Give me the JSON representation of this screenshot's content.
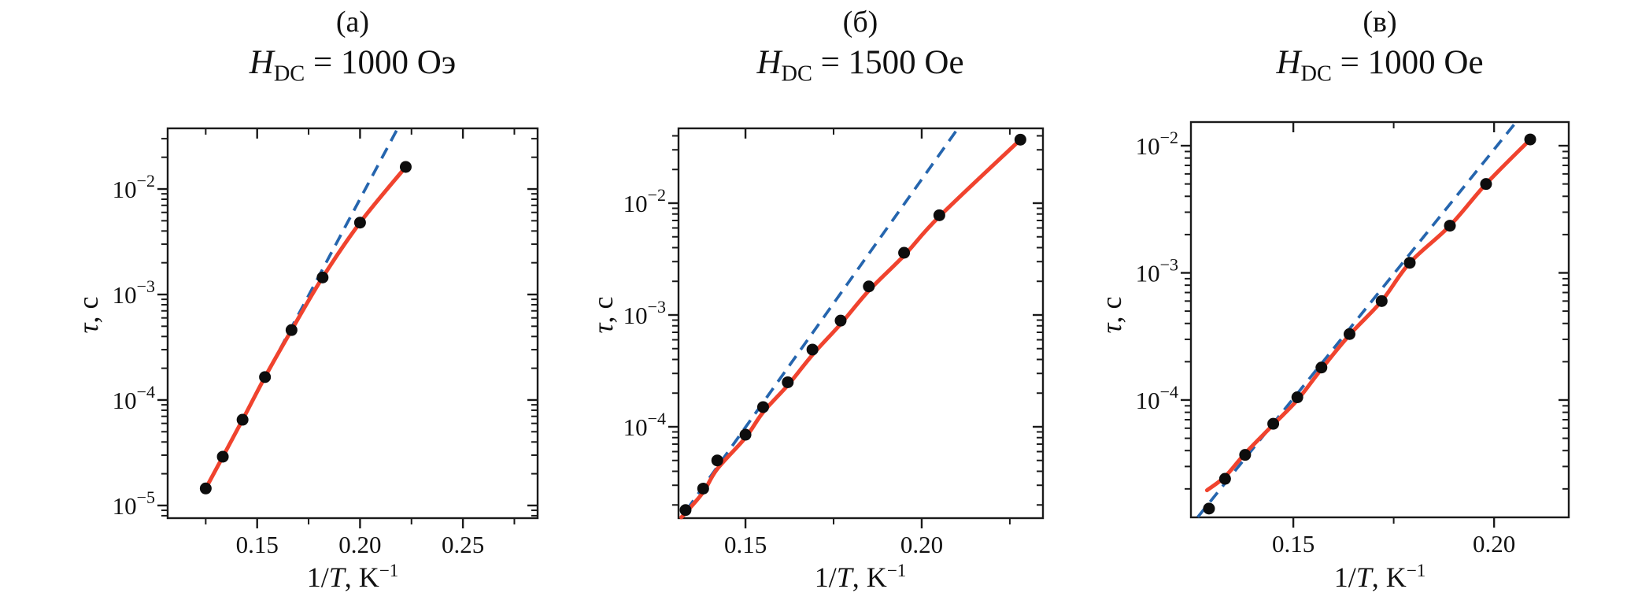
{
  "page": {
    "background": "#ffffff"
  },
  "shared": {
    "ylabel": {
      "tau": "τ",
      "rest": ", с"
    },
    "xlabel": {
      "pre": "1/",
      "t": "T",
      "mid": ", K",
      "sup": "−1"
    }
  },
  "colors": {
    "points": "#0d0d0d",
    "fit_line": "#f0432e",
    "arrhenius_line": "#2565ae",
    "axis": "#1a1a1a"
  },
  "chart_data": [
    {
      "type": "scatter",
      "panel_label": "(а)",
      "title": {
        "h": "H",
        "sub": "DC",
        "rest": " = 1000 Оэ"
      },
      "xlabel": "1/T, K⁻¹",
      "ylabel": "τ, с",
      "grid": false,
      "legend": "none",
      "xlim": [
        0.1065,
        0.2863
      ],
      "ylim_log10": [
        -5.12,
        -1.425
      ],
      "x_ticks": [
        {
          "v": 0.15,
          "label": "0.15"
        },
        {
          "v": 0.2,
          "label": "0.20"
        },
        {
          "v": 0.25,
          "label": "0.25"
        }
      ],
      "x_minor_ticks": [
        0.125,
        0.175,
        0.225,
        0.275
      ],
      "y_ticks": [
        {
          "log": -2,
          "exp": "−2"
        },
        {
          "log": -3,
          "exp": "−3"
        },
        {
          "log": -4,
          "exp": "−4"
        },
        {
          "log": -5,
          "exp": "−5"
        }
      ],
      "points": {
        "x": [
          0.125,
          0.1333,
          0.1429,
          0.1538,
          0.1667,
          0.1818,
          0.2,
          0.2222
        ],
        "tau": [
          1.45e-05,
          2.9e-05,
          6.5e-05,
          0.000165,
          0.00046,
          0.00145,
          0.0048,
          0.0162
        ]
      },
      "fit_curve": {
        "x": [
          0.125,
          0.1333,
          0.1429,
          0.1538,
          0.1667,
          0.1818,
          0.2,
          0.2222
        ],
        "tau": [
          1.45e-05,
          2.9e-05,
          6.5e-05,
          0.000165,
          0.00046,
          0.00145,
          0.0048,
          0.0162
        ]
      },
      "arrhenius": {
        "x": [
          0.125,
          0.2183
        ],
        "tau": [
          1.45e-05,
          0.0376
        ]
      }
    },
    {
      "type": "scatter",
      "panel_label": "(б)",
      "title": {
        "h": "H",
        "sub": "DC",
        "rest": " = 1500 Oe"
      },
      "xlabel": "1/T, K⁻¹",
      "ylabel": "τ, с",
      "grid": false,
      "legend": "none",
      "xlim": [
        0.131,
        0.2344
      ],
      "ylim_log10": [
        -4.817,
        -1.331
      ],
      "x_ticks": [
        {
          "v": 0.15,
          "label": "0.15"
        },
        {
          "v": 0.2,
          "label": "0.20"
        }
      ],
      "x_minor_ticks": [
        0.175,
        0.225
      ],
      "y_ticks": [
        {
          "log": -2,
          "exp": "−2"
        },
        {
          "log": -3,
          "exp": "−3"
        },
        {
          "log": -4,
          "exp": "−4"
        }
      ],
      "points": {
        "x": [
          0.133,
          0.138,
          0.142,
          0.15,
          0.155,
          0.162,
          0.169,
          0.177,
          0.185,
          0.195,
          0.205,
          0.228
        ],
        "tau": [
          1.8e-05,
          2.8e-05,
          5e-05,
          8.5e-05,
          0.00015,
          0.00025,
          0.00049,
          0.00089,
          0.0018,
          0.0036,
          0.0078,
          0.037
        ]
      },
      "fit_curve": {
        "x": [
          0.1318,
          0.133,
          0.138,
          0.142,
          0.15,
          0.155,
          0.162,
          0.169,
          0.177,
          0.185,
          0.195,
          0.205,
          0.228
        ],
        "tau": [
          1.55e-05,
          1.7e-05,
          2.6e-05,
          4.2e-05,
          8e-05,
          0.000135,
          0.000235,
          0.00044,
          0.00083,
          0.00165,
          0.0034,
          0.0076,
          0.037
        ]
      },
      "arrhenius": {
        "x": [
          0.1333,
          0.2103
        ],
        "tau": [
          1.8e-05,
          0.0467
        ]
      }
    },
    {
      "type": "scatter",
      "panel_label": "(в)",
      "title": {
        "h": "H",
        "sub": "DC",
        "rest": " = 1000 Oe"
      },
      "xlabel": "1/T, K⁻¹",
      "ylabel": "τ, с",
      "grid": false,
      "legend": "none",
      "xlim": [
        0.1245,
        0.2186
      ],
      "ylim_log10": [
        -4.923,
        -1.814
      ],
      "x_ticks": [
        {
          "v": 0.15,
          "label": "0.15"
        },
        {
          "v": 0.2,
          "label": "0.20"
        }
      ],
      "x_minor_ticks": [
        0.175
      ],
      "y_ticks": [
        {
          "log": -2,
          "exp": "−2"
        },
        {
          "log": -3,
          "exp": "−3"
        },
        {
          "log": -4,
          "exp": "−4"
        }
      ],
      "points": {
        "x": [
          0.129,
          0.133,
          0.138,
          0.145,
          0.151,
          0.157,
          0.164,
          0.172,
          0.179,
          0.189,
          0.198,
          0.209
        ],
        "tau": [
          1.4e-05,
          2.4e-05,
          3.7e-05,
          6.5e-05,
          0.000105,
          0.00018,
          0.00033,
          0.0006,
          0.0012,
          0.00235,
          0.005,
          0.0112
        ]
      },
      "fit_curve": {
        "x": [
          0.1285,
          0.133,
          0.138,
          0.145,
          0.151,
          0.157,
          0.164,
          0.172,
          0.179,
          0.189,
          0.198,
          0.209
        ],
        "tau": [
          1.95e-05,
          2.5e-05,
          3.8e-05,
          6.4e-05,
          0.0001,
          0.000175,
          0.000325,
          0.0006,
          0.0012,
          0.00235,
          0.005,
          0.0112
        ]
      },
      "arrhenius": {
        "x": [
          0.1262,
          0.2055
        ],
        "tau": [
          1.2e-05,
          0.01535
        ]
      }
    }
  ]
}
